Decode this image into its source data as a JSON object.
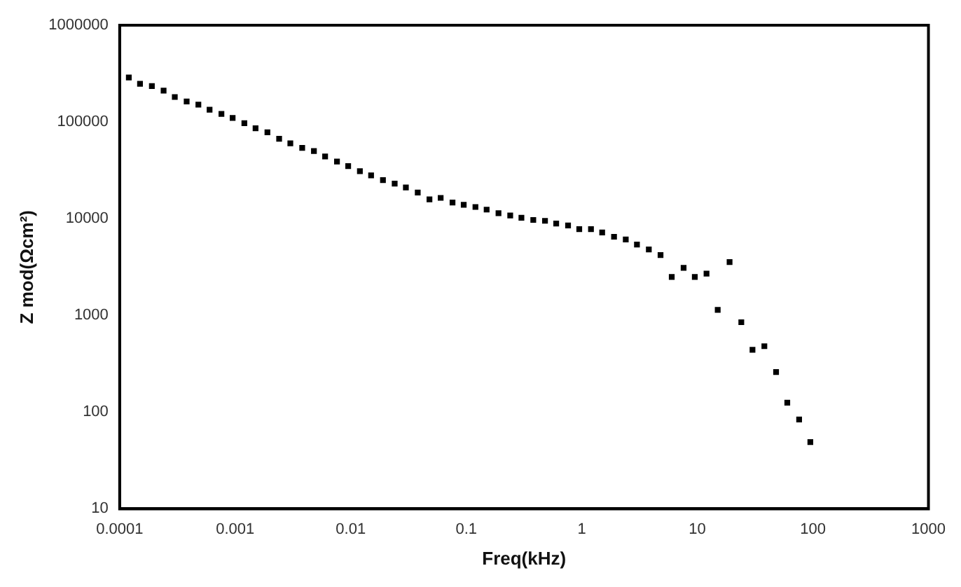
{
  "chart_data": {
    "type": "scatter",
    "xlabel": "Freq(kHz)",
    "ylabel": "Z mod(Ωcm²)",
    "log": "xy",
    "grid": false,
    "legend": false,
    "marker": "square",
    "xlim": [
      0.0001,
      1000
    ],
    "xticks": [
      0.0001,
      0.001,
      0.01,
      0.1,
      1,
      10,
      100,
      1000
    ],
    "ylim": [
      10,
      1000000
    ],
    "yticks": [
      10,
      100,
      1000,
      10000,
      100000,
      1000000
    ],
    "series": [
      {
        "color": "#000000",
        "x": [
          0.00012,
          0.00015,
          0.00019,
          0.00024,
          0.0003,
          0.00038,
          0.00048,
          0.0006,
          0.00076,
          0.00095,
          0.0012,
          0.0015,
          0.0019,
          0.0024,
          0.003,
          0.0038,
          0.0048,
          0.006,
          0.0076,
          0.0095,
          0.012,
          0.015,
          0.019,
          0.024,
          0.03,
          0.038,
          0.048,
          0.06,
          0.076,
          0.095,
          0.12,
          0.15,
          0.19,
          0.24,
          0.3,
          0.38,
          0.48,
          0.6,
          0.76,
          0.95,
          1.2,
          1.5,
          1.9,
          2.4,
          3,
          3.8,
          4.8,
          6,
          7.6,
          9.5,
          12,
          15,
          19,
          24,
          30,
          38,
          48,
          60,
          76,
          95
        ],
        "values": [
          288000,
          248000,
          235000,
          211000,
          181000,
          163000,
          151000,
          134000,
          121000,
          110000,
          97000,
          86000,
          78000,
          67000,
          60000,
          54000,
          50000,
          44000,
          39000,
          35000,
          31000,
          28000,
          25000,
          23000,
          21000,
          18600,
          15800,
          16400,
          14700,
          13900,
          13200,
          12400,
          11400,
          10800,
          10200,
          9700,
          9500,
          8900,
          8500,
          7800,
          7800,
          7200,
          6500,
          6100,
          5400,
          4800,
          4200,
          2500,
          3100,
          2500,
          2700,
          1140,
          3560,
          850,
          440,
          480,
          260,
          125,
          84,
          49
        ]
      }
    ]
  }
}
